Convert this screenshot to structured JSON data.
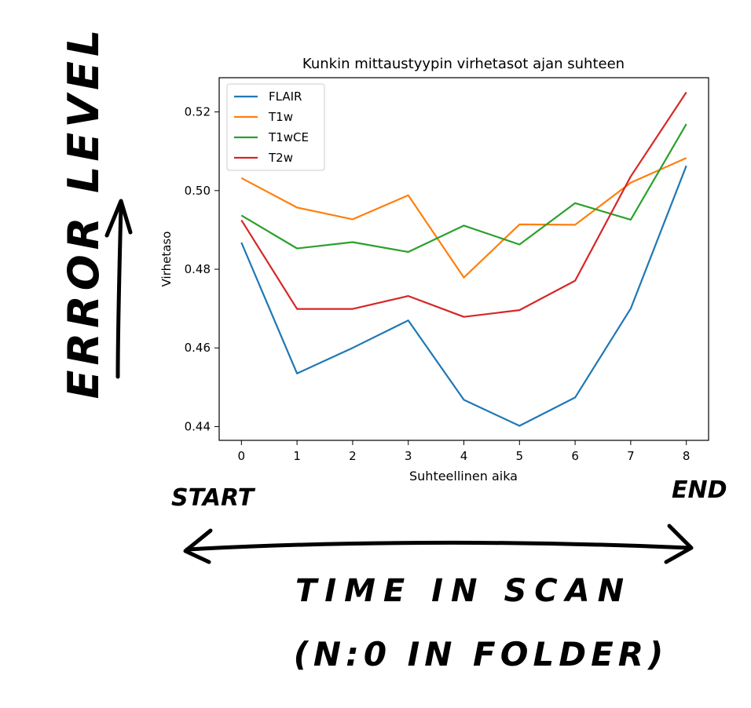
{
  "chart_data": {
    "type": "line",
    "title": "Kunkin mittaustyypin virhetasot ajan suhteen",
    "xlabel": "Suhteellinen aika",
    "ylabel": "Virhetaso",
    "x": [
      0,
      1,
      2,
      3,
      4,
      5,
      6,
      7,
      8
    ],
    "xticks": [
      "0",
      "1",
      "2",
      "3",
      "4",
      "5",
      "6",
      "7",
      "8"
    ],
    "yticks": [
      "0.44",
      "0.46",
      "0.48",
      "0.50",
      "0.52"
    ],
    "ytick_values": [
      0.44,
      0.46,
      0.48,
      0.5,
      0.52
    ],
    "xlim": [
      -0.4,
      8.4
    ],
    "ylim": [
      0.4365,
      0.5287
    ],
    "grid": false,
    "legend_position": "top-left",
    "series": [
      {
        "name": "FLAIR",
        "color": "#1f77b4",
        "values": [
          0.4868,
          0.4535,
          0.46,
          0.467,
          0.4468,
          0.4402,
          0.4474,
          0.47,
          0.5063
        ]
      },
      {
        "name": "T1w",
        "color": "#ff7f0e",
        "values": [
          0.5032,
          0.4957,
          0.4927,
          0.4988,
          0.4779,
          0.4914,
          0.4913,
          0.502,
          0.5083
        ]
      },
      {
        "name": "T1wCE",
        "color": "#2ca02c",
        "values": [
          0.4937,
          0.4853,
          0.4869,
          0.4844,
          0.4911,
          0.4863,
          0.4968,
          0.4926,
          0.5169
        ]
      },
      {
        "name": "T2w",
        "color": "#d62728",
        "values": [
          0.4925,
          0.4699,
          0.4699,
          0.4732,
          0.4679,
          0.4696,
          0.4771,
          0.5036,
          0.525
        ]
      }
    ]
  },
  "annotations": {
    "y_handwritten": "ERROR LEVEL",
    "start": "START",
    "end": "END",
    "time_line1": "TIME IN SCAN",
    "time_line2": "(N:0 IN FOLDER)"
  }
}
